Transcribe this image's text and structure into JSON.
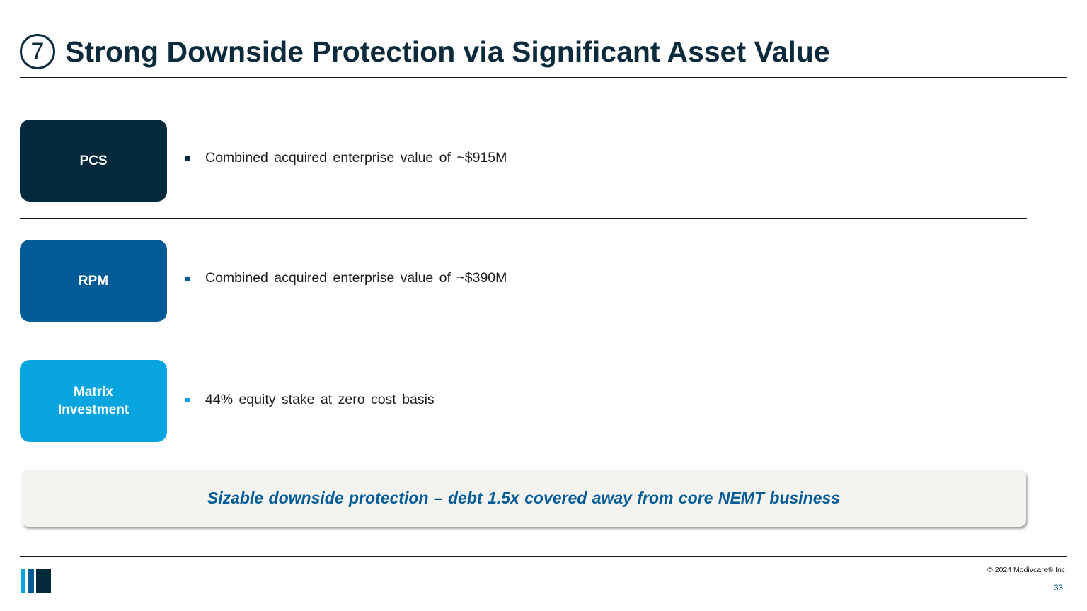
{
  "header": {
    "step_number": "7",
    "title": "Strong Downside Protection via Significant Asset Value"
  },
  "segments": [
    {
      "label": "PCS",
      "bullet": "Combined acquired enterprise value of ~$915M",
      "color": "#022a3c"
    },
    {
      "label": "RPM",
      "bullet": "Combined acquired enterprise value of ~$390M",
      "color": "#005b97"
    },
    {
      "label_line1": "Matrix",
      "label_line2": "Investment",
      "bullet": "44% equity stake at zero cost basis",
      "color": "#06a5df"
    }
  ],
  "callout": {
    "text": "Sizable downside protection – debt 1.5x covered away from core NEMT business"
  },
  "footer": {
    "copyright": "© 2024 Modivcare® Inc.",
    "page_number": "33"
  },
  "colors": {
    "navy": "#0b2a3b",
    "blue": "#005b97",
    "light_blue": "#06a5df",
    "callout_bg": "#f4f3ef"
  }
}
